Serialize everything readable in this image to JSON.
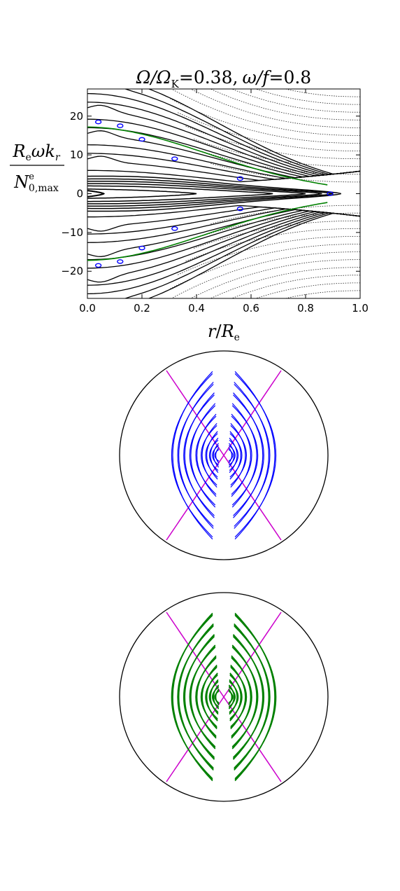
{
  "chart_data": [
    {
      "type": "line",
      "title": "Ω/Ω_K = 0.38, ω/f = 0.8",
      "title_parts": {
        "omega_ratio_symbol": "Ω/Ω",
        "omega_ratio_sub": "K",
        "omega_ratio_value": "=0.38,",
        "freq_symbol": "ω/f",
        "freq_value": "=0.8"
      },
      "xlabel": "r/R_e",
      "xlabel_parts": {
        "r": "r",
        "slash": "/",
        "R": "R",
        "sub": "e"
      },
      "ylabel": "R_e ω k_r / N^e_0,max",
      "ylabel_parts": {
        "num": "R",
        "num_sub": "e",
        "num_rest": "ωk",
        "num_rest_sub": "r",
        "den": "N",
        "den_sup": "e",
        "den_sub": "0,max"
      },
      "xlim": [
        0.0,
        1.0
      ],
      "ylim": [
        -27,
        27
      ],
      "xticks": [
        "0.0",
        "0.2",
        "0.4",
        "0.6",
        "0.8",
        "1.0"
      ],
      "yticks": [
        "20",
        "10",
        "0",
        "−10",
        "−20"
      ],
      "grid": false,
      "series": [
        {
          "color": "#000000",
          "values": []
        },
        {
          "color": "#008000",
          "values": []
        },
        {
          "color": "#0000ff",
          "values": []
        }
      ]
    },
    {
      "type": "other",
      "description_colors": {
        "rays": "#0000ff",
        "boundary": "#cc00cc",
        "outline": "#000000"
      }
    },
    {
      "type": "other",
      "description_colors": {
        "rays": "#008000",
        "boundary": "#cc00cc",
        "outline": "#000000"
      }
    }
  ]
}
